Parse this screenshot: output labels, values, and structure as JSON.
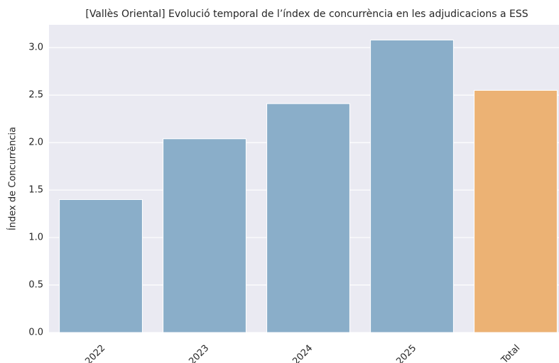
{
  "chart_data": {
    "type": "bar",
    "title": "[Vallès Oriental] Evolució temporal de l’índex de concurrència en les adjudicacions a ESS",
    "ylabel": "Índex de Concurrència",
    "categories": [
      "2022",
      "2023",
      "2024",
      "2025",
      "Total"
    ],
    "values": [
      1.4,
      2.04,
      2.41,
      3.08,
      2.55
    ],
    "colors": [
      "#8aaec9",
      "#8aaec9",
      "#8aaec9",
      "#8aaec9",
      "#ecb274"
    ],
    "ylim": [
      0,
      3.24
    ],
    "yticks": [
      {
        "value": 0,
        "label": "0.0"
      },
      0.5,
      {
        "value": 1,
        "label": "1.0"
      },
      1.5,
      {
        "value": 2,
        "label": "2.0"
      },
      2.5,
      {
        "value": 3,
        "label": "3.0"
      }
    ],
    "grid": true
  }
}
